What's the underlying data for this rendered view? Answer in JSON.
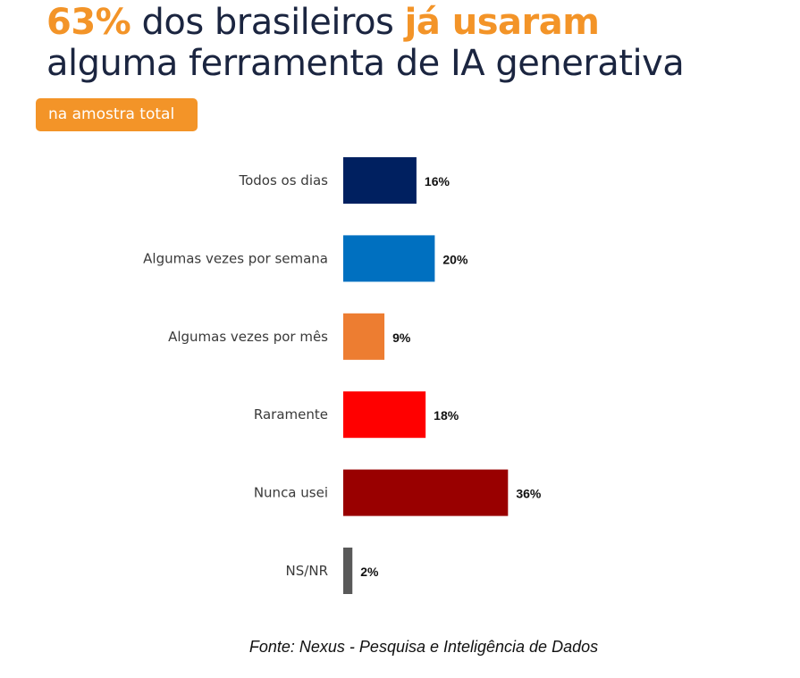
{
  "title": {
    "part1_highlight": "63%",
    "part2": " dos brasileiros ",
    "part3_highlight": "já usaram",
    "line2": "alguma ferramenta de IA generativa"
  },
  "badge": "na amostra total",
  "source": "Fonte: Nexus - Pesquisa e Inteligência de Dados",
  "colors": {
    "accent": "#f39428",
    "title": "#1b2540"
  },
  "chart_data": {
    "type": "bar",
    "orientation": "horizontal",
    "title": "63% dos brasileiros já usaram alguma ferramenta de IA generativa",
    "subtitle": "na amostra total",
    "categories": [
      "Todos os dias",
      "Algumas vezes por semana",
      "Algumas vezes por mês",
      "Raramente",
      "Nunca usei",
      "NS/NR"
    ],
    "values": [
      16,
      20,
      9,
      18,
      36,
      2
    ],
    "labels": [
      "16%",
      "20%",
      "9%",
      "18%",
      "36%",
      "2%"
    ],
    "bar_colors": [
      "#002060",
      "#0070c0",
      "#ed7d31",
      "#ff0000",
      "#990000",
      "#595959"
    ],
    "unit": "%",
    "xlabel": "",
    "ylabel": "",
    "grid": false,
    "legend": "none"
  }
}
